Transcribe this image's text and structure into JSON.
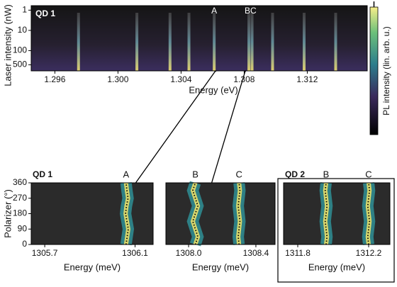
{
  "chart_data": [
    {
      "type": "heatmap",
      "label": "QD 1",
      "xlabel": "Energy (eV)",
      "ylabel": "Laser intensity (nW)",
      "xlim": [
        1.2945,
        1.3158
      ],
      "xticks": [
        1.296,
        {
          "value": 1.3,
          "label": "1.300"
        },
        1.304,
        1.308,
        1.312
      ],
      "log_y": true,
      "ylim": [
        0.6,
        1000
      ],
      "yticks": [
        1,
        10,
        100,
        500
      ],
      "peaks": [
        1.2975,
        1.3012,
        1.3033,
        1.3045,
        1.3061,
        1.3083,
        1.3085,
        1.3098,
        1.3118,
        1.3138
      ],
      "annotations": [
        {
          "text": "A",
          "x": 1.3061
        },
        {
          "text": "BC",
          "x": 1.3084
        }
      ],
      "colorbar_label": "PL intensity (lin. arb. u.)"
    },
    {
      "type": "polarization",
      "label": "QD 1",
      "xlabel": "Energy (meV)",
      "ylabel": "Polarizer (°)",
      "xlim": [
        1305.64,
        1306.18
      ],
      "xticks": [
        1305.7,
        1306.1
      ],
      "ylim": [
        0,
        360
      ],
      "yticks": [
        0,
        90,
        180,
        270,
        360
      ],
      "series": [
        {
          "name": "A",
          "x": [
            1306.06,
            1306.065,
            1306.07,
            1306.064,
            1306.058,
            1306.062,
            1306.069,
            1306.064,
            1306.06
          ],
          "y": [
            0,
            45,
            90,
            135,
            180,
            225,
            270,
            315,
            360
          ]
        }
      ]
    },
    {
      "type": "polarization",
      "xlabel": "Energy (meV)",
      "xlim": [
        1307.865,
        1308.514
      ],
      "xticks": [
        {
          "value": 1308.0,
          "label": "1308.0"
        },
        1308.4
      ],
      "ylim": [
        0,
        360
      ],
      "yticks": [
        0,
        90,
        180,
        270,
        360
      ],
      "series": [
        {
          "name": "B",
          "x": [
            1308.04,
            1308.055,
            1308.04,
            1308.025,
            1308.04,
            1308.055,
            1308.04,
            1308.025,
            1308.04
          ],
          "y": [
            0,
            45,
            90,
            135,
            180,
            225,
            270,
            315,
            360
          ]
        },
        {
          "name": "C",
          "x": [
            1308.3,
            1308.295,
            1308.3,
            1308.305,
            1308.3,
            1308.295,
            1308.3,
            1308.305,
            1308.3
          ],
          "y": [
            0,
            45,
            90,
            135,
            180,
            225,
            270,
            315,
            360
          ]
        }
      ]
    },
    {
      "type": "polarization",
      "label": "QD 2",
      "xlabel": "Energy (meV)",
      "xlim": [
        1311.72,
        1312.32
      ],
      "xticks": [
        1311.8,
        1312.2
      ],
      "ylim": [
        0,
        360
      ],
      "yticks": [
        0,
        90,
        180,
        270,
        360
      ],
      "series": [
        {
          "name": "B",
          "x": [
            1311.96,
            1311.965,
            1311.96,
            1311.955,
            1311.96,
            1311.965,
            1311.96,
            1311.955,
            1311.96
          ],
          "y": [
            0,
            45,
            90,
            135,
            180,
            225,
            270,
            315,
            360
          ]
        },
        {
          "name": "C",
          "x": [
            1312.2,
            1312.195,
            1312.2,
            1312.205,
            1312.2,
            1312.195,
            1312.2,
            1312.205,
            1312.2
          ],
          "y": [
            0,
            45,
            90,
            135,
            180,
            225,
            270,
            315,
            360
          ]
        }
      ]
    }
  ]
}
